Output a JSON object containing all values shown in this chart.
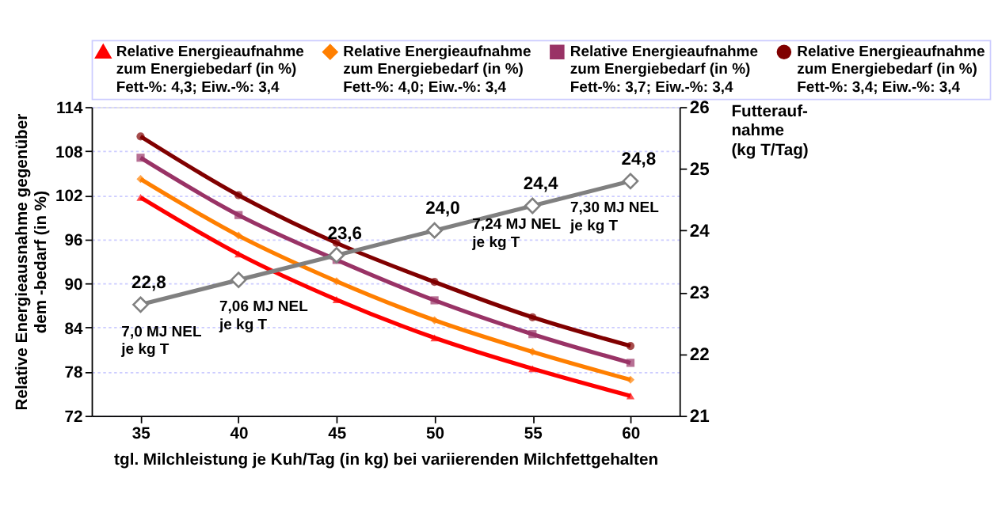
{
  "chart_data": {
    "type": "line",
    "categories": [
      "35",
      "40",
      "45",
      "50",
      "55",
      "60"
    ],
    "xlabel": "tgl. Milchleistung je Kuh/Tag (in kg) bei variierenden Milchfettgehalten",
    "ylabel": "Relative Energieausnahme gegenüber\ndem -bedarf (in %)",
    "y2label": "Futterauf-\nnahme\n(kg T/Tag)",
    "ylim": [
      72,
      114
    ],
    "yticks": [
      72,
      78,
      84,
      90,
      96,
      102,
      108,
      114
    ],
    "y2lim": [
      21,
      26
    ],
    "y2ticks": [
      21,
      22,
      23,
      24,
      25,
      26
    ],
    "grid": "y",
    "legend": "top",
    "line_style": "solid",
    "series": [
      {
        "name": "Relative Energieaufnahme\nzum Energiebedarf (in %)\nFett-%: 4,3; Eiw.-%: 3,4",
        "color": "#ff0000",
        "marker": "triangle",
        "values": [
          101.7,
          94.0,
          87.8,
          82.6,
          78.4,
          74.7
        ]
      },
      {
        "name": "Relative Energieaufnahme\nzum Energiebedarf (in %)\nFett-%: 4,0; Eiw.-%: 3,4",
        "color": "#ff7f00",
        "marker": "diamond",
        "values": [
          104.2,
          96.5,
          90.3,
          85.0,
          80.7,
          76.9
        ]
      },
      {
        "name": "Relative Energieaufnahme\nzum Energiebedarf (in %)\nFett-%: 3,7; Eiw.-%: 3,4",
        "color": "#993366",
        "marker": "square",
        "values": [
          107.1,
          99.3,
          93.2,
          87.7,
          83.1,
          79.2
        ]
      },
      {
        "name": "Relative Energieaufnahme\nzum Energiebedarf (in %)\nFett-%: 3,4; Eiw.-%: 3,4",
        "color": "#800000",
        "marker": "circle",
        "values": [
          110.0,
          102.0,
          95.5,
          90.2,
          85.4,
          81.5
        ]
      },
      {
        "color": "#808080",
        "marker": "diamond",
        "axis": "y2",
        "values": [
          22.8,
          23.2,
          23.6,
          24.0,
          24.4,
          24.8
        ],
        "value_labels": [
          "22,8",
          null,
          "23,6",
          "24,0",
          "24,4",
          "24,8"
        ]
      }
    ],
    "annotations": [
      "7,0 MJ NEL\nje kg T",
      "7,06 MJ NEL\nje kg T",
      "7,24 MJ NEL\nje kg T",
      "7,30 MJ NEL\nje kg T"
    ]
  }
}
